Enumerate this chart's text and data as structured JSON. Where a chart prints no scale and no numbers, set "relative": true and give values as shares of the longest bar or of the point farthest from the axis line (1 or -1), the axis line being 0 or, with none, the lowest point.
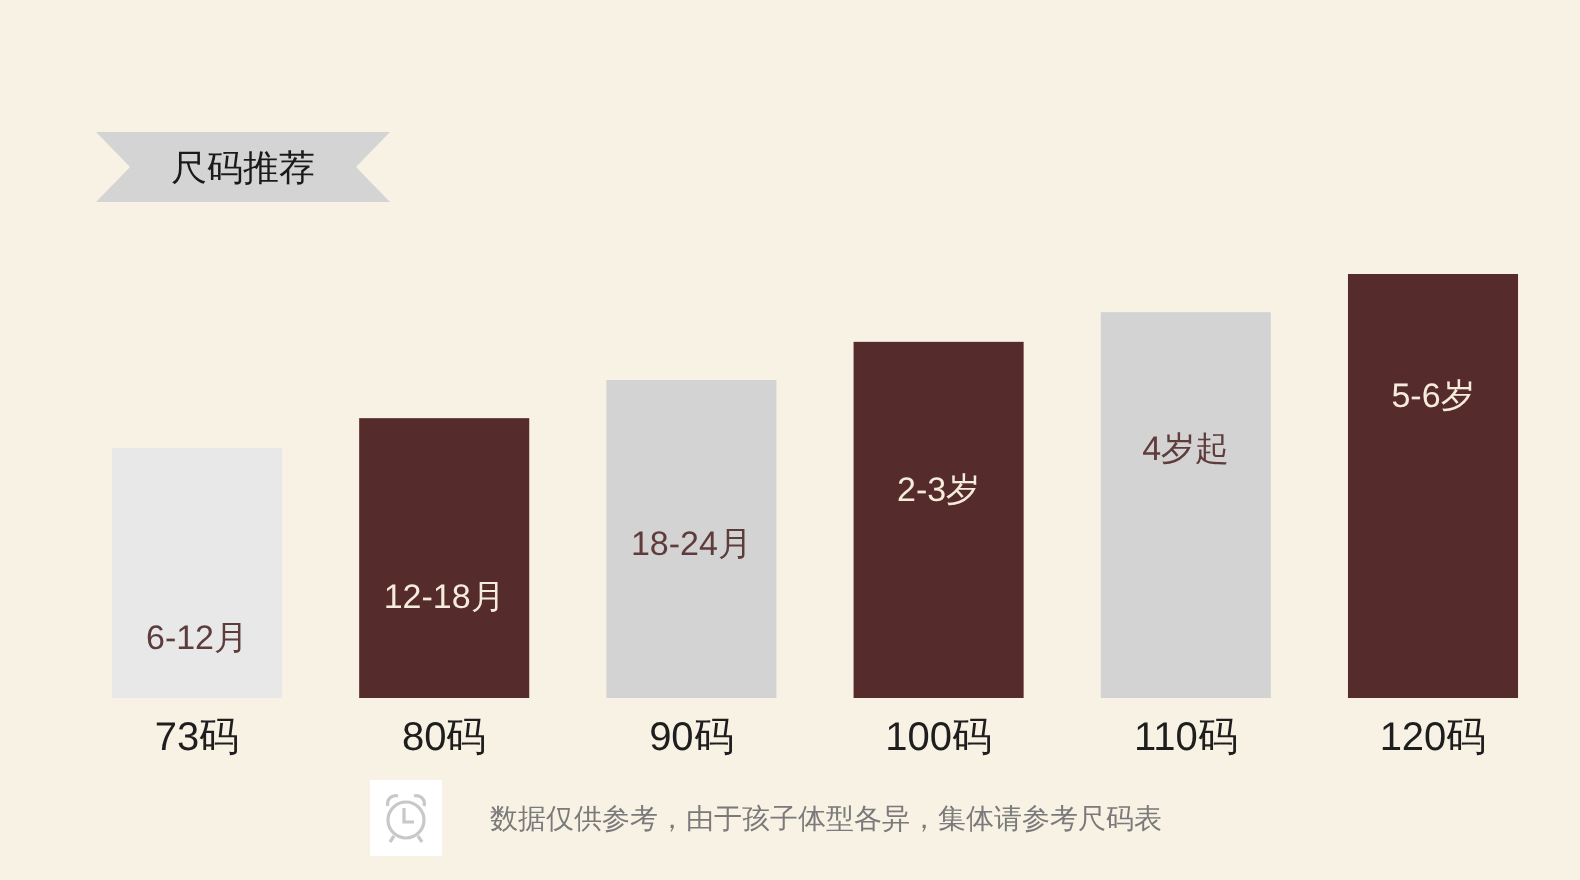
{
  "chart_data": {
    "type": "bar",
    "title": "尺码推荐",
    "categories": [
      "73码",
      "80码",
      "90码",
      "100码",
      "110码",
      "120码"
    ],
    "values": [
      0.59,
      0.66,
      0.75,
      0.84,
      0.91,
      1
    ],
    "relative": true,
    "colors": [
      "#e8e8e8",
      "#562b2b",
      "#d3d3d3",
      "#562b2b",
      "#d3d3d3",
      "#562b2b"
    ],
    "annotations": [
      "6-12月",
      "12-18月",
      "18-24月",
      "2-3岁",
      "4岁起",
      "5-6岁",
      "数据仅供参考，由于孩子体型各异，集体请参考尺码表"
    ]
  }
}
